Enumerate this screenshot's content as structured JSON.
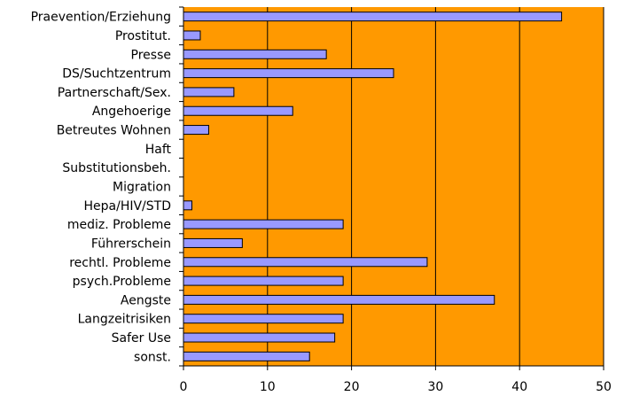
{
  "chart_data": {
    "type": "bar",
    "orientation": "horizontal",
    "categories": [
      "Praevention/Erziehung",
      "Prostitut.",
      "Presse",
      "DS/Suchtzentrum",
      "Partnerschaft/Sex.",
      "Angehoerige",
      "Betreutes Wohnen",
      "Haft",
      "Substitutionsbeh.",
      "Migration",
      "Hepa/HIV/STD",
      "mediz. Probleme",
      "Führerschein",
      "rechtl. Probleme",
      "psych.Probleme",
      "Aengste",
      "Langzeitrisiken",
      "Safer Use",
      "sonst."
    ],
    "values": [
      45,
      2,
      17,
      25,
      6,
      13,
      3,
      0,
      0,
      0,
      1,
      19,
      7,
      29,
      19,
      37,
      19,
      18,
      15
    ],
    "xlim": [
      0,
      50
    ],
    "xticks": [
      0,
      10,
      20,
      30,
      40,
      50
    ],
    "grid": true,
    "title": "",
    "xlabel": "",
    "ylabel": "",
    "legend": "none",
    "colors": {
      "plot_background": "#ff9900",
      "bar_fill": "#9999ff",
      "bar_stroke": "#000000",
      "gridline": "#000000",
      "axis": "#000000"
    }
  }
}
